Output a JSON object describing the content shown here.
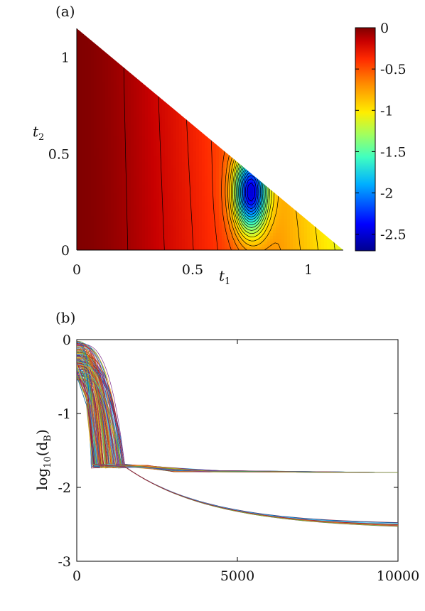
{
  "chart_data": [
    {
      "type": "heatmap",
      "panel_label": "(a)",
      "xlabel": "t1",
      "ylabel": "t2",
      "xlim": [
        0,
        1.15
      ],
      "ylim": [
        0,
        1.15
      ],
      "xticks": [
        "0",
        "0.5",
        "1"
      ],
      "yticks": [
        "0",
        "0.5",
        "1"
      ],
      "region": "triangle t1 + t2 <= 1.15",
      "colormap": "jet",
      "colorbar": {
        "range": [
          -2.7,
          0
        ],
        "ticks": [
          "0",
          "-0.5",
          "-1",
          "-1.5",
          "-2",
          "-2.5"
        ],
        "placement": "right"
      },
      "minimum": {
        "t1": 0.75,
        "t2": 0.3,
        "value": -2.7
      },
      "maximum_region": {
        "t1": 0.0,
        "t2": 1.0,
        "value": 0
      },
      "contour_lines": true
    },
    {
      "type": "line",
      "panel_label": "(b)",
      "xlabel": "",
      "ylabel": "log10(dB)",
      "xlim": [
        0,
        10000
      ],
      "ylim": [
        -3,
        0
      ],
      "xticks": [
        "0",
        "5000",
        "10000"
      ],
      "yticks": [
        "0",
        "-1",
        "-2",
        "-3"
      ],
      "grid": false,
      "legend": "none",
      "series_groups": [
        {
          "description_count": 180,
          "start_range": [
            -0.55,
            -0.02
          ],
          "drop_x_range": [
            450,
            1500
          ],
          "plateau": -1.8,
          "plateau_x": 1600
        },
        {
          "description_count": 12,
          "converge_to": -2.5,
          "x_end": 10000
        }
      ]
    }
  ],
  "panel_a": {
    "label": "(a)",
    "xlabel_main": "t",
    "xlabel_sub": "1",
    "ylabel_main": "t",
    "ylabel_sub": "2"
  },
  "panel_b": {
    "label": "(b)",
    "ylabel_main": "log",
    "ylabel_sub": "10",
    "ylabel_arg": "(d",
    "ylabel_arg_sub": "B",
    "ylabel_close": ")"
  }
}
